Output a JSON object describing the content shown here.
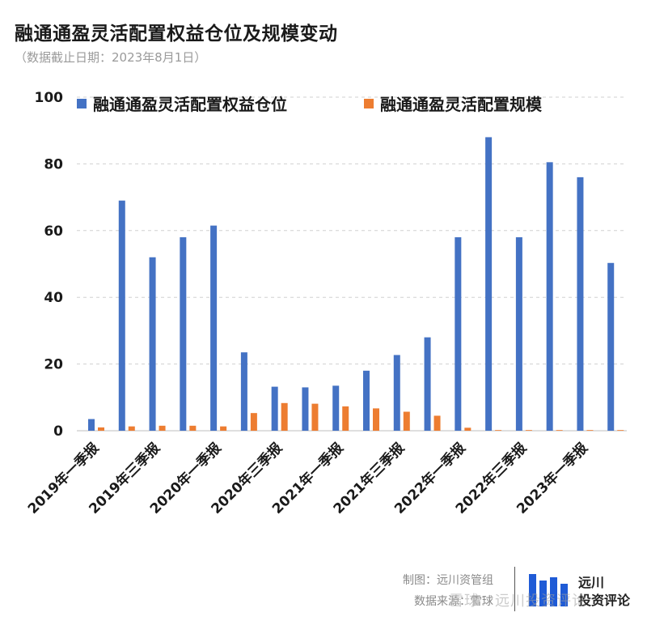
{
  "header": {
    "title": "融通通盈灵活配置权益仓位及规模变动",
    "subtitle": "（数据截止日期：2023年8月1日）"
  },
  "footer": {
    "credit": "制图：远川资管组",
    "source": "数据来源：雪球"
  },
  "brand": {
    "line1": "远川",
    "line2": "投资评论",
    "watermark": "雪球：远川投资评论"
  },
  "chart_data": {
    "type": "bar",
    "categories": [
      "2019年一季报",
      "",
      "2019年三季报",
      "",
      "2020年一季报",
      "",
      "2020年三季报",
      "",
      "2021年一季报",
      "",
      "2021年三季报",
      "",
      "2022年一季报",
      "",
      "2022年三季报",
      "",
      "2023年一季报",
      ""
    ],
    "ylim": [
      0,
      100
    ],
    "yticks": [
      0,
      20,
      40,
      60,
      80,
      100
    ],
    "grid": true,
    "legend": "top",
    "series": [
      {
        "name": "融通通盈灵活配置权益仓位",
        "color": "#4472C4",
        "values": [
          3.5,
          69,
          52,
          58,
          61.5,
          23.5,
          13.2,
          13,
          13.5,
          18,
          22.7,
          28,
          58,
          88,
          58,
          80.5,
          76,
          50.3
        ]
      },
      {
        "name": "融通通盈灵活配置规模",
        "color": "#ED7D31",
        "values": [
          1,
          1.3,
          1.5,
          1.5,
          1.3,
          5.3,
          8.3,
          8.1,
          7.3,
          6.7,
          5.7,
          4.5,
          0.9,
          0.2,
          0.2,
          0.2,
          0.2,
          0.2
        ]
      }
    ]
  }
}
